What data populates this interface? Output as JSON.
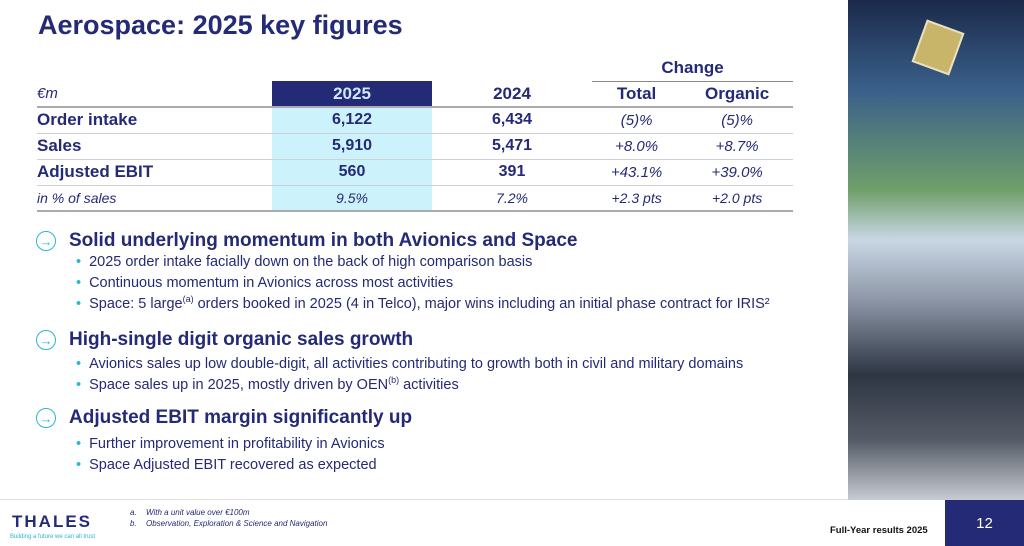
{
  "title": "Aerospace: 2025 key figures",
  "table": {
    "change_label": "Change",
    "headers": [
      "€m",
      "2025",
      "2024",
      "Total",
      "Organic"
    ],
    "rows": [
      [
        "Order intake",
        "6,122",
        "6,434",
        "(5)%",
        "(5)%"
      ],
      [
        "Sales",
        "5,910",
        "5,471",
        "+8.0%",
        "+8.7%"
      ],
      [
        "Adjusted EBIT",
        "560",
        "391",
        "+43.1%",
        "+39.0%"
      ],
      [
        "in % of sales",
        "9.5%",
        "7.2%",
        "+2.3 pts",
        "+2.0 pts"
      ]
    ]
  },
  "sections": [
    {
      "heading": "Solid underlying momentum in both Avionics and Space",
      "bullets": [
        "2025 order intake facially down on the back of high comparison basis",
        "Continuous momentum in Avionics across most activities"
      ],
      "bullet3_pre": "Space: 5 large",
      "bullet3_sup": "(a)",
      "bullet3_post": " orders booked in 2025 (4 in Telco), major wins including an initial phase contract for IRIS²"
    },
    {
      "heading": "High-single digit organic sales growth",
      "bullets": [
        "Avionics sales up low double-digit, all activities contributing to growth both in civil and military domains"
      ],
      "bullet2_pre": "Space sales up in 2025, mostly driven by OEN",
      "bullet2_sup": "(b)",
      "bullet2_post": " activities"
    },
    {
      "heading": "Adjusted EBIT margin significantly up",
      "bullets": [
        "Further improvement in profitability in Avionics",
        "Space Adjusted EBIT recovered as expected"
      ]
    }
  ],
  "footnotes": [
    {
      "mark": "a.",
      "text": "With a unit value over €100m"
    },
    {
      "mark": "b.",
      "text": "Observation, Exploration & Science and Navigation"
    }
  ],
  "logo": "THALES",
  "tagline": "Building a future we can all trust",
  "footer": "Full-Year results 2025",
  "page_number": "12",
  "colors": {
    "navy": "#242a75",
    "highlight": "#ccf3fb",
    "accent": "#29b7d3"
  }
}
